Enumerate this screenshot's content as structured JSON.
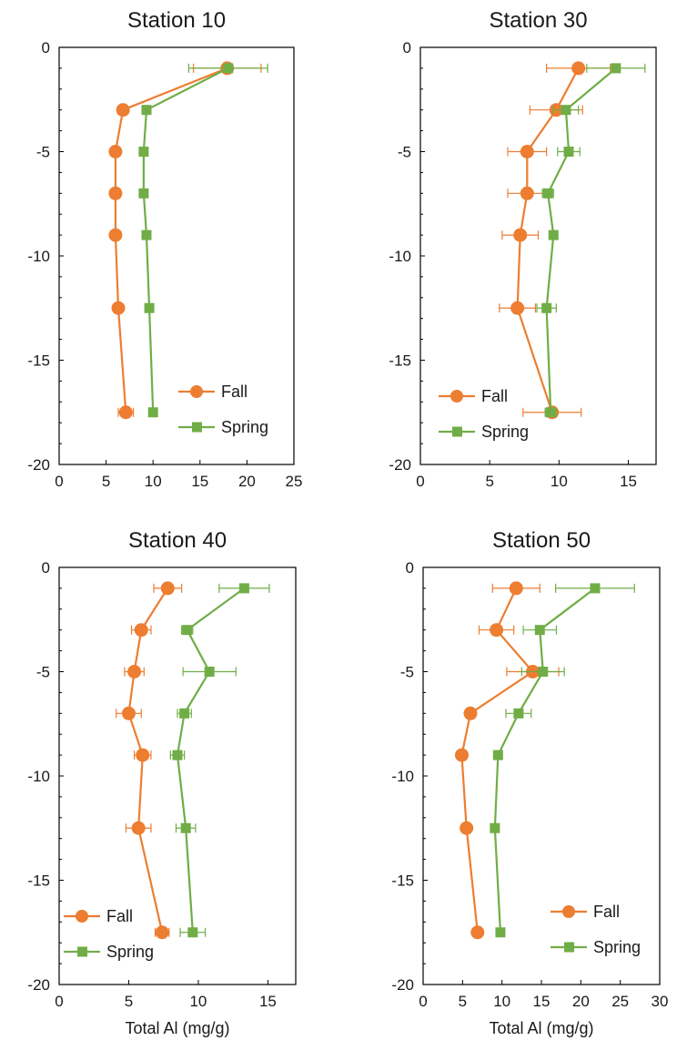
{
  "chart_data": [
    {
      "type": "scatter",
      "title": "Station 10",
      "xlabel": "",
      "ylabel": "",
      "xlim": [
        0,
        25
      ],
      "ylim": [
        -20,
        0
      ],
      "xticks": [
        0,
        5,
        10,
        15,
        20,
        25
      ],
      "yticks": [
        0,
        -5,
        -10,
        -15,
        -20
      ],
      "legend_position": "bottom-right",
      "series": [
        {
          "name": "Fall",
          "color": "#ed7d31",
          "marker": "circle",
          "y": [
            -1,
            -3,
            -5,
            -7,
            -9,
            -12.5,
            -17.5
          ],
          "x": [
            17.9,
            6.8,
            6.0,
            6.0,
            6.0,
            6.3,
            7.1
          ],
          "xerr": [
            3.6,
            0.5,
            0.4,
            0.5,
            0.4,
            0.4,
            0.8
          ]
        },
        {
          "name": "Spring",
          "color": "#70ad47",
          "marker": "square",
          "y": [
            -1,
            -3,
            -5,
            -7,
            -9,
            -12.5,
            -17.5
          ],
          "x": [
            18.0,
            9.3,
            9.0,
            9.0,
            9.3,
            9.6,
            10.0
          ],
          "xerr": [
            4.2,
            0.3,
            0.3,
            0.3,
            0.4,
            0.3,
            0.3
          ]
        }
      ]
    },
    {
      "type": "scatter",
      "title": "Station 30",
      "xlabel": "",
      "ylabel": "",
      "xlim": [
        0,
        17
      ],
      "ylim": [
        -20,
        0
      ],
      "xticks": [
        0,
        5,
        10,
        15
      ],
      "yticks": [
        0,
        -5,
        -10,
        -15,
        -20
      ],
      "legend_position": "bottom-left",
      "series": [
        {
          "name": "Fall",
          "color": "#ed7d31",
          "marker": "circle",
          "y": [
            -1,
            -3,
            -5,
            -7,
            -9,
            -12.5,
            -17.5
          ],
          "x": [
            11.4,
            9.8,
            7.7,
            7.7,
            7.2,
            7.0,
            9.5
          ],
          "xerr": [
            2.3,
            1.9,
            1.4,
            1.4,
            1.3,
            1.3,
            2.1
          ]
        },
        {
          "name": "Spring",
          "color": "#70ad47",
          "marker": "square",
          "y": [
            -1,
            -3,
            -5,
            -7,
            -9,
            -12.5,
            -17.5
          ],
          "x": [
            14.1,
            10.5,
            10.7,
            9.2,
            9.6,
            9.1,
            9.4
          ],
          "xerr": [
            2.1,
            0.9,
            0.8,
            0.4,
            0.3,
            0.7,
            0.4
          ]
        }
      ]
    },
    {
      "type": "scatter",
      "title": "Station 40",
      "xlabel": "Total Al (mg/g)",
      "ylabel": "",
      "xlim": [
        0,
        17
      ],
      "ylim": [
        -20,
        0
      ],
      "xticks": [
        0,
        5,
        10,
        15
      ],
      "yticks": [
        0,
        -5,
        -10,
        -15,
        -20
      ],
      "legend_position": "bottom-left",
      "series": [
        {
          "name": "Fall",
          "color": "#ed7d31",
          "marker": "circle",
          "y": [
            -1,
            -3,
            -5,
            -7,
            -9,
            -12.5,
            -17.5
          ],
          "x": [
            7.8,
            5.9,
            5.4,
            5.0,
            6.0,
            5.7,
            7.4
          ],
          "xerr": [
            1.0,
            0.7,
            0.7,
            0.9,
            0.6,
            0.9,
            0.5
          ]
        },
        {
          "name": "Spring",
          "color": "#70ad47",
          "marker": "square",
          "y": [
            -1,
            -3,
            -5,
            -7,
            -9,
            -12.5,
            -17.5
          ],
          "x": [
            13.3,
            9.2,
            10.8,
            9.0,
            8.5,
            9.1,
            9.6
          ],
          "xerr": [
            1.8,
            0.4,
            1.9,
            0.5,
            0.5,
            0.7,
            0.9
          ]
        }
      ]
    },
    {
      "type": "scatter",
      "title": "Station 50",
      "xlabel": "Total Al (mg/g)",
      "ylabel": "",
      "xlim": [
        0,
        30
      ],
      "ylim": [
        -20,
        0
      ],
      "xticks": [
        0,
        5,
        10,
        15,
        20,
        25,
        30
      ],
      "yticks": [
        0,
        -5,
        -10,
        -15,
        -20
      ],
      "legend_position": "bottom-right",
      "series": [
        {
          "name": "Fall",
          "color": "#ed7d31",
          "marker": "circle",
          "y": [
            -1,
            -3,
            -5,
            -7,
            -9,
            -12.5,
            -17.5
          ],
          "x": [
            11.8,
            9.3,
            13.9,
            6.0,
            4.9,
            5.5,
            6.9
          ],
          "xerr": [
            3.0,
            2.2,
            3.3,
            0,
            0,
            0,
            0
          ]
        },
        {
          "name": "Spring",
          "color": "#70ad47",
          "marker": "square",
          "y": [
            -1,
            -3,
            -5,
            -7,
            -9,
            -12.5,
            -17.5
          ],
          "x": [
            21.8,
            14.8,
            15.2,
            12.1,
            9.5,
            9.1,
            9.8
          ],
          "xerr": [
            5.0,
            2.1,
            2.7,
            1.6,
            0,
            0,
            0
          ]
        }
      ]
    }
  ]
}
